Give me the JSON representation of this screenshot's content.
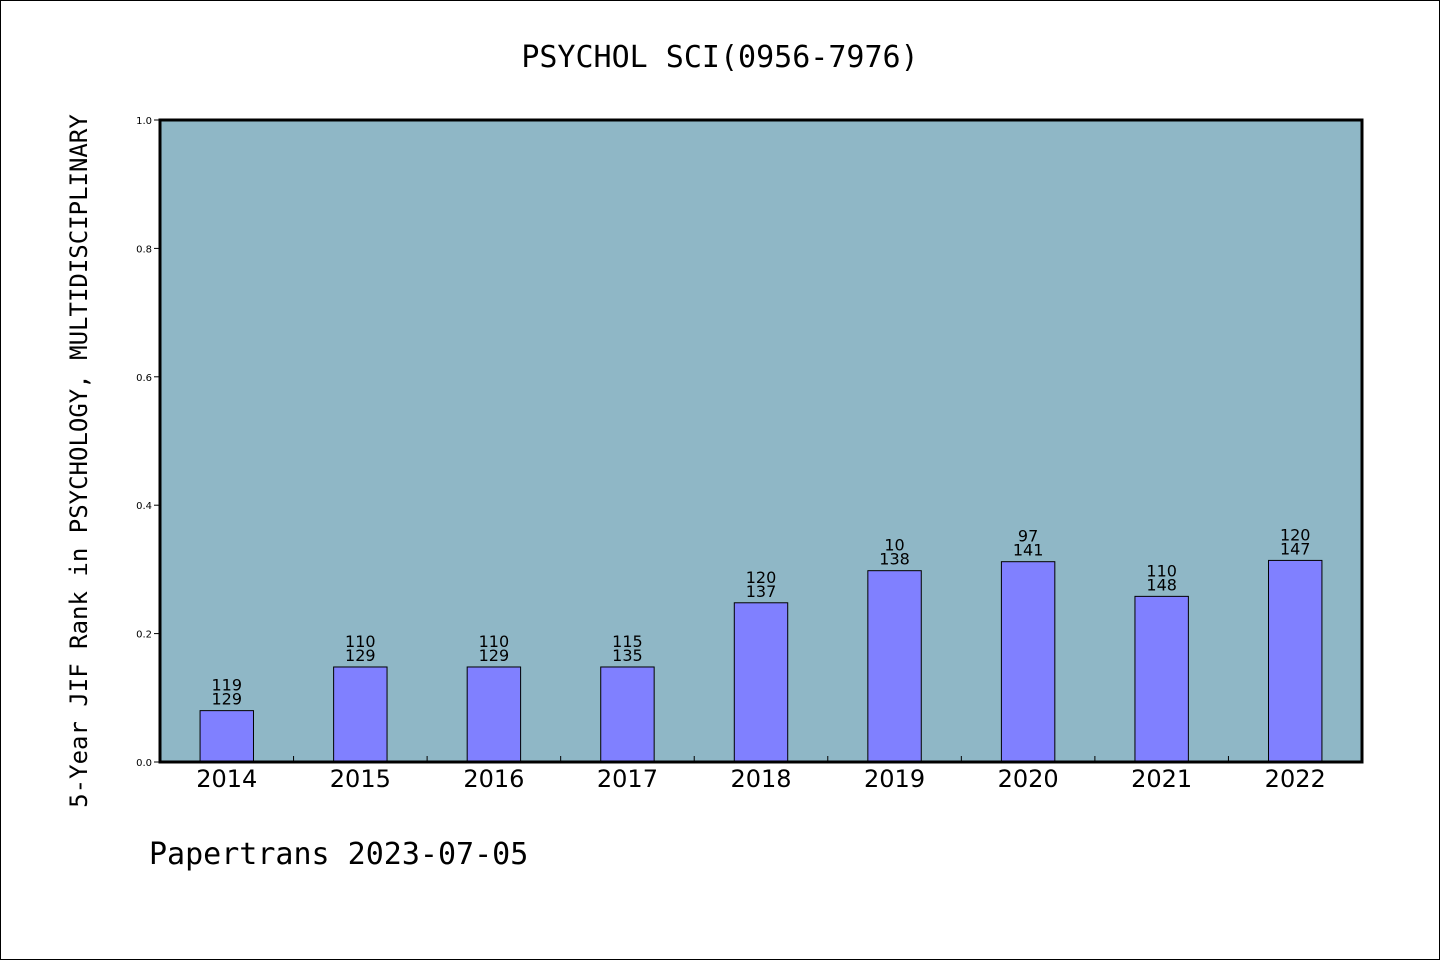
{
  "chart_data": {
    "type": "bar",
    "title": "PSYCHOL SCI(0956-7976)",
    "ylabel": "5-Year JIF Rank in PSYCHOLOGY, MULTIDISCIPLINARY",
    "xlabel": "",
    "ylim": [
      0,
      1.0
    ],
    "yticks": [
      "0.0",
      "0.2",
      "0.4",
      "0.6",
      "0.8",
      "1.0"
    ],
    "categories": [
      "2014",
      "2015",
      "2016",
      "2017",
      "2018",
      "2019",
      "2020",
      "2021",
      "2022"
    ],
    "values": [
      0.08,
      0.148,
      0.148,
      0.148,
      0.248,
      0.298,
      0.312,
      0.258,
      0.314
    ],
    "labels_top": [
      "119",
      "110",
      "110",
      "115",
      "120",
      "10",
      "97",
      "110",
      "120"
    ],
    "labels_bottom": [
      "129",
      "129",
      "129",
      "135",
      "137",
      "138",
      "141",
      "148",
      "147"
    ],
    "grid": false,
    "legend": "none",
    "colors": {
      "plot_background": "#8fb7c6",
      "bar_fill": "#8080ff",
      "bar_stroke": "#000000"
    }
  },
  "footer": "Papertrans 2023-07-05"
}
